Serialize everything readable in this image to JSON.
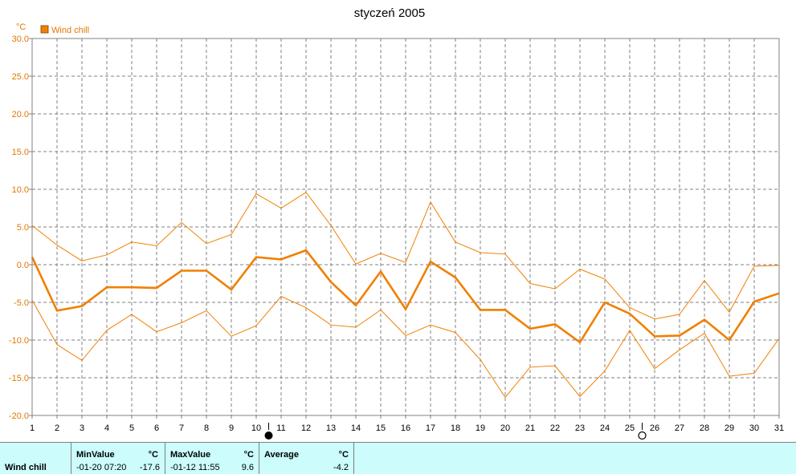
{
  "chart_data": {
    "type": "line",
    "title": "styczeń 2005",
    "ylabel": "°C",
    "ylim": [
      -20,
      30
    ],
    "yticks": [
      "30.0",
      "25.0",
      "20.0",
      "15.0",
      "10.0",
      "5.0",
      "0.0",
      "-5.0",
      "-10.0",
      "-15.0",
      "-20.0"
    ],
    "x": [
      "1",
      "2",
      "3",
      "4",
      "5",
      "6",
      "7",
      "8",
      "9",
      "10",
      "11",
      "12",
      "13",
      "14",
      "15",
      "16",
      "17",
      "18",
      "19",
      "20",
      "21",
      "22",
      "23",
      "24",
      "25",
      "26",
      "27",
      "28",
      "29",
      "30",
      "31"
    ],
    "legend": {
      "label": "Wind chill",
      "position": "top-left"
    },
    "grid": true,
    "colors": {
      "series": "#f08000",
      "axis": "#e07800"
    },
    "series": [
      {
        "role": "max",
        "values": [
          5.2,
          2.6,
          0.5,
          1.3,
          3.0,
          2.5,
          5.6,
          2.8,
          4.0,
          9.4,
          7.5,
          9.6,
          5.2,
          0.1,
          1.5,
          0.3,
          8.3,
          3.0,
          1.6,
          1.4,
          -2.5,
          -3.2,
          -0.6,
          -1.9,
          -5.7,
          -7.2,
          -6.6,
          -2.1,
          -6.3,
          -0.2,
          -0.1
        ]
      },
      {
        "role": "avg",
        "values": [
          1.0,
          -6.1,
          -5.5,
          -3.0,
          -3.0,
          -3.1,
          -0.8,
          -0.8,
          -3.3,
          1.0,
          0.7,
          1.9,
          -2.3,
          -5.4,
          -0.9,
          -5.9,
          0.4,
          -1.7,
          -6.0,
          -6.0,
          -8.5,
          -7.9,
          -10.3,
          -5.0,
          -6.5,
          -9.5,
          -9.4,
          -7.3,
          -10.0,
          -4.9,
          -3.8
        ]
      },
      {
        "role": "min",
        "values": [
          -4.7,
          -10.6,
          -12.7,
          -8.7,
          -6.6,
          -8.9,
          -7.7,
          -6.1,
          -9.5,
          -8.1,
          -4.2,
          -5.7,
          -8.0,
          -8.3,
          -6.0,
          -9.4,
          -8.0,
          -9.0,
          -12.6,
          -17.6,
          -13.6,
          -13.4,
          -17.5,
          -14.1,
          -8.7,
          -13.8,
          -11.3,
          -9.1,
          -14.8,
          -14.4,
          -9.8
        ]
      }
    ],
    "moon_markers": [
      {
        "position": 10.5,
        "phase": "full-moon-filled"
      },
      {
        "position": 25.5,
        "phase": "new-moon-empty"
      }
    ]
  },
  "stats": {
    "row_label": "Wind chill",
    "min": {
      "header": "MinValue",
      "unit": "°C",
      "date": "-01-20  07:20",
      "value": "-17.6"
    },
    "max": {
      "header": "MaxValue",
      "unit": "°C",
      "date": "-01-12  11:55",
      "value": "9.6"
    },
    "avg": {
      "header": "Average",
      "unit": "°C",
      "value": "-4.2"
    }
  }
}
